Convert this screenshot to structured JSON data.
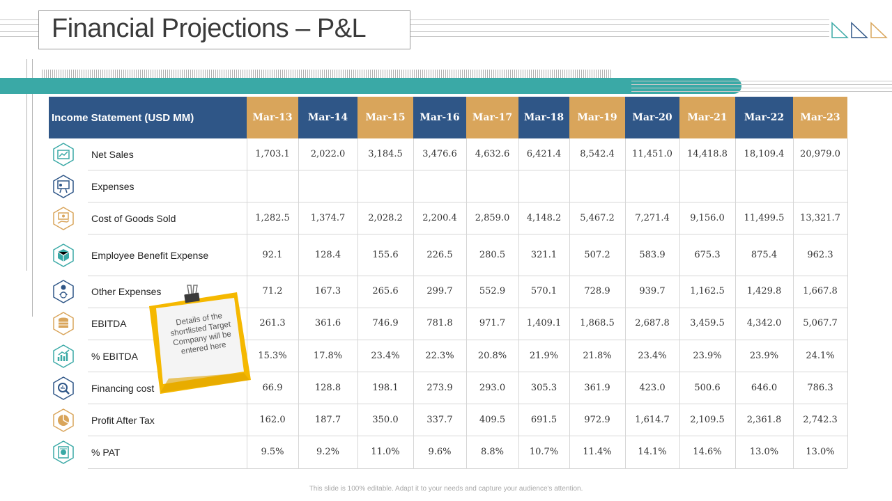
{
  "title": "Financial Projections – P&L",
  "table": {
    "header_label": "Income Statement (USD MM)",
    "columns": [
      "Mar-13",
      "Mar-14",
      "Mar-15",
      "Mar-16",
      "Mar-17",
      "Mar-18",
      "Mar-19",
      "Mar-20",
      "Mar-21",
      "Mar-22",
      "Mar-23"
    ],
    "rows": [
      {
        "label": "Net Sales",
        "icon": "sales-chart-icon",
        "values": [
          "1,703.1",
          "2,022.0",
          "3,184.5",
          "3,476.6",
          "4,632.6",
          "6,421.4",
          "8,542.4",
          "11,451.0",
          "14,418.8",
          "18,109.4",
          "20,979.0"
        ]
      },
      {
        "label": "Expenses",
        "icon": "presentation-board-icon",
        "values": [
          "",
          "",
          "",
          "",
          "",
          "",
          "",
          "",
          "",
          "",
          ""
        ]
      },
      {
        "label": "Cost of Goods Sold",
        "icon": "money-hand-icon",
        "values": [
          "1,282.5",
          "1,374.7",
          "2,028.2",
          "2,200.4",
          "2,859.0",
          "4,148.2",
          "5,467.2",
          "7,271.4",
          "9,156.0",
          "11,499.5",
          "13,321.7"
        ]
      },
      {
        "label": "Employee Benefit Expense",
        "icon": "cube-network-icon",
        "values": [
          "92.1",
          "128.4",
          "155.6",
          "226.5",
          "280.5",
          "321.1",
          "507.2",
          "583.9",
          "675.3",
          "875.4",
          "962.3"
        ]
      },
      {
        "label": "Other Expenses",
        "icon": "person-dollar-icon",
        "values": [
          "71.2",
          "167.3",
          "265.6",
          "299.7",
          "552.9",
          "570.1",
          "728.9",
          "939.7",
          "1,162.5",
          "1,429.8",
          "1,667.8"
        ]
      },
      {
        "label": "EBITDA",
        "icon": "coin-stack-icon",
        "values": [
          "261.3",
          "361.6",
          "746.9",
          "781.8",
          "971.7",
          "1,409.1",
          "1,868.5",
          "2,687.8",
          "3,459.5",
          "4,342.0",
          "5,067.7"
        ]
      },
      {
        "label": "% EBITDA",
        "icon": "growth-chart-icon",
        "values": [
          "15.3%",
          "17.8%",
          "23.4%",
          "22.3%",
          "20.8%",
          "21.9%",
          "21.8%",
          "23.4%",
          "23.9%",
          "23.9%",
          "24.1%"
        ]
      },
      {
        "label": "Financing cost",
        "icon": "magnifier-chart-icon",
        "values": [
          "66.9",
          "128.8",
          "198.1",
          "273.9",
          "293.0",
          "305.3",
          "361.9",
          "423.0",
          "500.6",
          "646.0",
          "786.3"
        ]
      },
      {
        "label": "Profit After Tax",
        "icon": "pie-chart-icon",
        "values": [
          "162.0",
          "187.7",
          "350.0",
          "337.7",
          "409.5",
          "691.5",
          "972.9",
          "1,614.7",
          "2,109.5",
          "2,361.8",
          "2,742.3"
        ]
      },
      {
        "label": "% PAT",
        "icon": "dollar-document-icon",
        "values": [
          "9.5%",
          "9.2%",
          "11.0%",
          "9.6%",
          "8.8%",
          "10.7%",
          "11.4%",
          "14.1%",
          "14.6%",
          "13.0%",
          "13.0%"
        ]
      }
    ]
  },
  "sticky_note": "Details of the shortlisted Target Company will be entered here",
  "footer": "This slide is 100% editable. Adapt it to your needs and capture your audience's attention.",
  "colors": {
    "navy": "#2f5687",
    "gold": "#d9a55b",
    "teal": "#3aa9a6",
    "note_yellow": "#f5b800"
  }
}
